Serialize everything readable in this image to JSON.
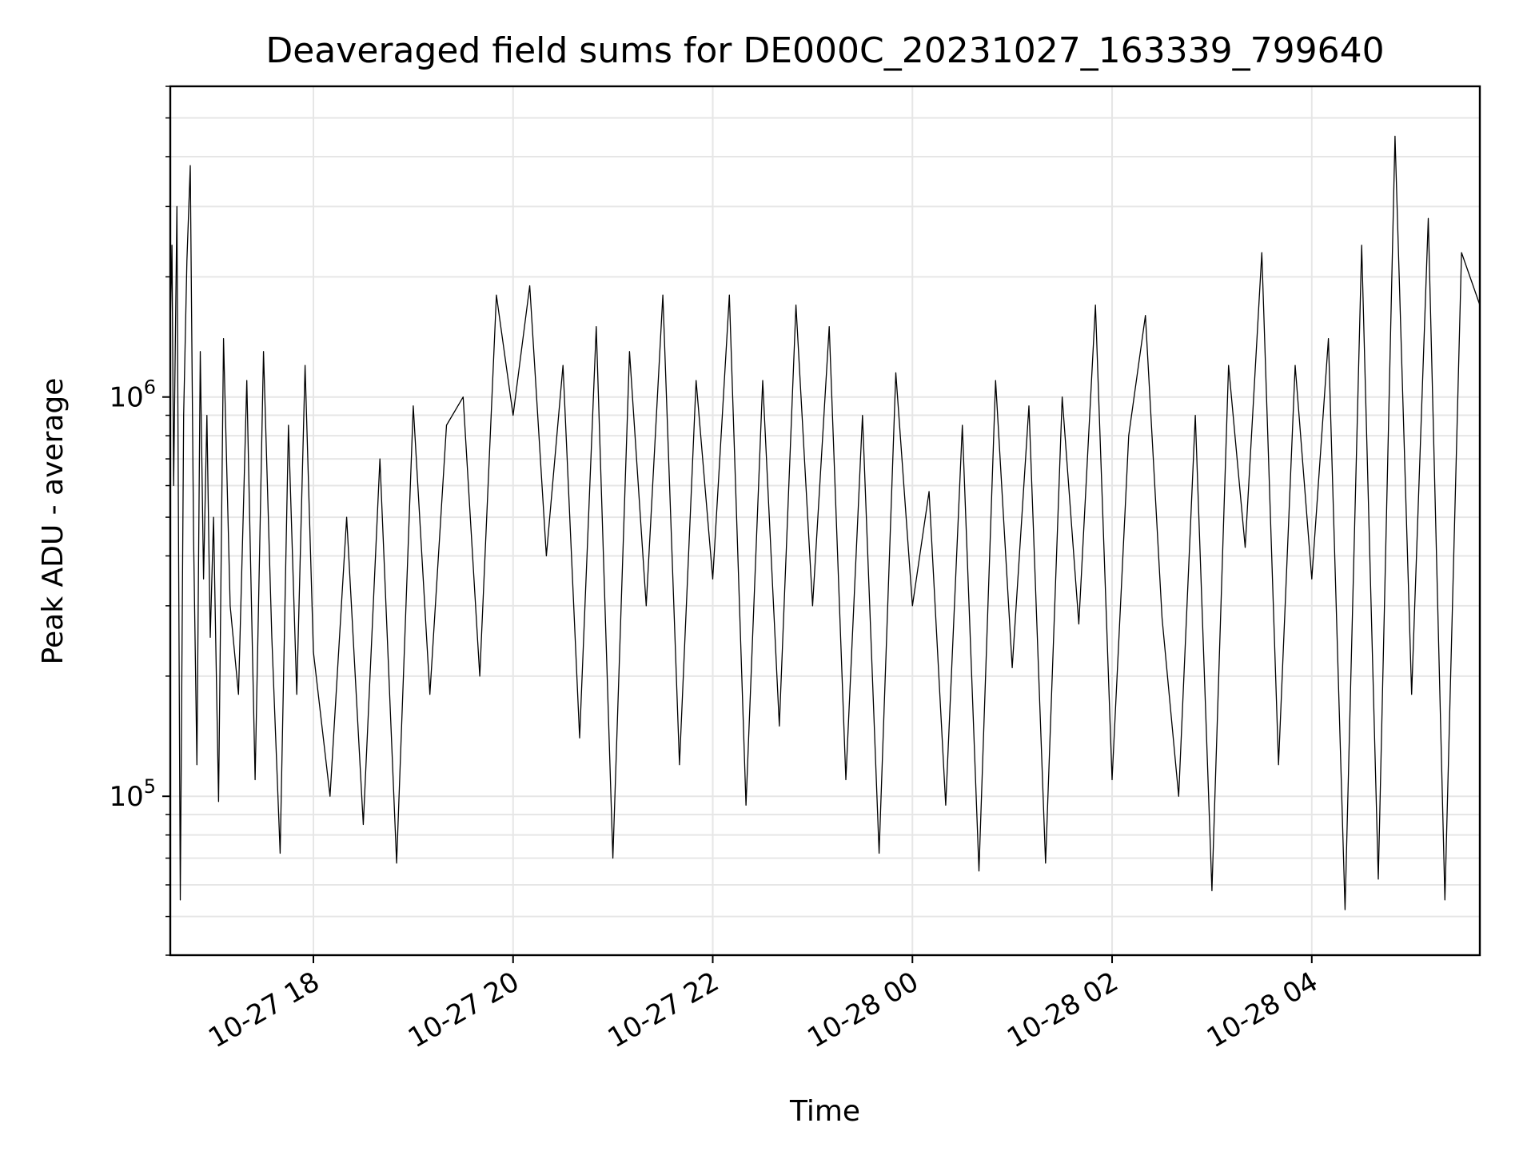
{
  "chart_data": {
    "type": "line",
    "title": "Deaveraged field sums for DE000C_20231027_163339_799640",
    "xlabel": "Time",
    "ylabel": "Peak ADU - average",
    "yscale": "log",
    "xlim": [
      "2023-10-27T16:34",
      "2023-10-28T05:41"
    ],
    "ylim": [
      40000,
      6000000
    ],
    "grid": true,
    "legend": "none",
    "line_color": "#000000",
    "x_ticks": [
      {
        "value": "2023-10-27T18:00",
        "label": "10-27 18"
      },
      {
        "value": "2023-10-27T20:00",
        "label": "10-27 20"
      },
      {
        "value": "2023-10-27T22:00",
        "label": "10-27 22"
      },
      {
        "value": "2023-10-28T00:00",
        "label": "10-28 00"
      },
      {
        "value": "2023-10-28T02:00",
        "label": "10-28 02"
      },
      {
        "value": "2023-10-28T04:00",
        "label": "10-28 04"
      }
    ],
    "y_ticks": [
      {
        "value": 100000,
        "base": "10",
        "exp": "5"
      },
      {
        "value": 1000000,
        "base": "10",
        "exp": "6"
      }
    ],
    "series": [
      {
        "x": [
          "2023-10-27T16:34",
          "2023-10-27T16:35",
          "2023-10-27T16:36",
          "2023-10-27T16:38",
          "2023-10-27T16:40",
          "2023-10-27T16:42",
          "2023-10-27T16:44",
          "2023-10-27T16:46",
          "2023-10-27T16:48",
          "2023-10-27T16:50",
          "2023-10-27T16:52",
          "2023-10-27T16:54",
          "2023-10-27T16:56",
          "2023-10-27T16:58",
          "2023-10-27T17:00",
          "2023-10-27T17:03",
          "2023-10-27T17:06",
          "2023-10-27T17:10",
          "2023-10-27T17:15",
          "2023-10-27T17:20",
          "2023-10-27T17:25",
          "2023-10-27T17:30",
          "2023-10-27T17:35",
          "2023-10-27T17:40",
          "2023-10-27T17:45",
          "2023-10-27T17:50",
          "2023-10-27T17:55",
          "2023-10-27T18:00",
          "2023-10-27T18:10",
          "2023-10-27T18:20",
          "2023-10-27T18:30",
          "2023-10-27T18:40",
          "2023-10-27T18:50",
          "2023-10-27T19:00",
          "2023-10-27T19:10",
          "2023-10-27T19:20",
          "2023-10-27T19:30",
          "2023-10-27T19:40",
          "2023-10-27T19:50",
          "2023-10-27T20:00",
          "2023-10-27T20:10",
          "2023-10-27T20:20",
          "2023-10-27T20:30",
          "2023-10-27T20:40",
          "2023-10-27T20:50",
          "2023-10-27T21:00",
          "2023-10-27T21:10",
          "2023-10-27T21:20",
          "2023-10-27T21:30",
          "2023-10-27T21:40",
          "2023-10-27T21:50",
          "2023-10-27T22:00",
          "2023-10-27T22:10",
          "2023-10-27T22:20",
          "2023-10-27T22:30",
          "2023-10-27T22:40",
          "2023-10-27T22:50",
          "2023-10-27T23:00",
          "2023-10-27T23:10",
          "2023-10-27T23:20",
          "2023-10-27T23:30",
          "2023-10-27T23:40",
          "2023-10-27T23:50",
          "2023-10-28T00:00",
          "2023-10-28T00:10",
          "2023-10-28T00:20",
          "2023-10-28T00:30",
          "2023-10-28T00:40",
          "2023-10-28T00:50",
          "2023-10-28T01:00",
          "2023-10-28T01:10",
          "2023-10-28T01:20",
          "2023-10-28T01:30",
          "2023-10-28T01:40",
          "2023-10-28T01:50",
          "2023-10-28T02:00",
          "2023-10-28T02:10",
          "2023-10-28T02:20",
          "2023-10-28T02:30",
          "2023-10-28T02:40",
          "2023-10-28T02:50",
          "2023-10-28T03:00",
          "2023-10-28T03:10",
          "2023-10-28T03:20",
          "2023-10-28T03:30",
          "2023-10-28T03:40",
          "2023-10-28T03:50",
          "2023-10-28T04:00",
          "2023-10-28T04:10",
          "2023-10-28T04:20",
          "2023-10-28T04:30",
          "2023-10-28T04:40",
          "2023-10-28T04:50",
          "2023-10-28T05:00",
          "2023-10-28T05:10",
          "2023-10-28T05:20",
          "2023-10-28T05:30",
          "2023-10-28T05:41"
        ],
        "y": [
          1500000,
          2400000,
          600000,
          3000000,
          55000,
          900000,
          2200000,
          3800000,
          450000,
          120000,
          1300000,
          350000,
          900000,
          250000,
          500000,
          97000,
          1400000,
          300000,
          180000,
          1100000,
          110000,
          1300000,
          250000,
          72000,
          850000,
          180000,
          1200000,
          230000,
          100000,
          500000,
          85000,
          700000,
          68000,
          950000,
          180000,
          850000,
          1000000,
          200000,
          1800000,
          900000,
          1900000,
          400000,
          1200000,
          140000,
          1500000,
          70000,
          1300000,
          300000,
          1800000,
          120000,
          1100000,
          350000,
          1800000,
          95000,
          1100000,
          150000,
          1700000,
          300000,
          1500000,
          110000,
          900000,
          72000,
          1150000,
          300000,
          580000,
          95000,
          850000,
          65000,
          1100000,
          210000,
          950000,
          68000,
          1000000,
          270000,
          1700000,
          110000,
          800000,
          1600000,
          280000,
          100000,
          900000,
          58000,
          1200000,
          420000,
          2300000,
          120000,
          1200000,
          350000,
          1400000,
          52000,
          2400000,
          62000,
          4500000,
          180000,
          2800000,
          55000,
          2300000,
          1700000
        ]
      }
    ]
  }
}
